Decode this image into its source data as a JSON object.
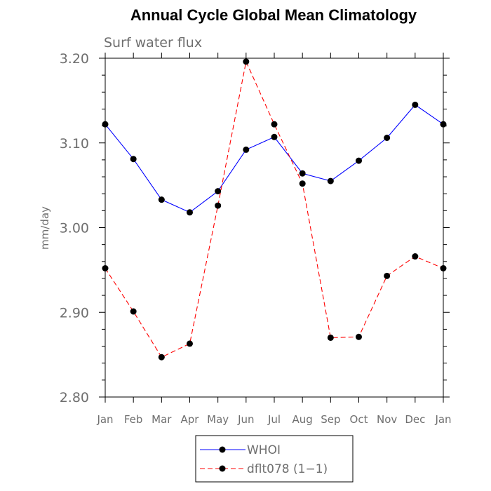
{
  "chart_data": {
    "type": "line",
    "title": "Annual Cycle Global Mean Climatology",
    "subtitle": "Surf water flux",
    "xlabel": "",
    "ylabel": "mm/day",
    "categories": [
      "Jan",
      "Feb",
      "Mar",
      "Apr",
      "May",
      "Jun",
      "Jul",
      "Aug",
      "Sep",
      "Oct",
      "Nov",
      "Dec",
      "Jan"
    ],
    "ylim": [
      2.8,
      3.2
    ],
    "yticks": [
      "2.80",
      "2.90",
      "3.00",
      "3.10",
      "3.20"
    ],
    "ytick_values": [
      2.8,
      2.9,
      3.0,
      3.1,
      3.2
    ],
    "grid": false,
    "legend_position": "bottom-center",
    "series": [
      {
        "name": "WHOI",
        "color": "#0000ff",
        "line_style": "solid",
        "marker": "filled-circle",
        "values": [
          3.122,
          3.081,
          3.033,
          3.018,
          3.043,
          3.092,
          3.107,
          3.064,
          3.055,
          3.079,
          3.106,
          3.145,
          3.122
        ]
      },
      {
        "name": "dflt078 (1−1)",
        "color": "#ff0000",
        "line_style": "dashed",
        "marker": "filled-circle",
        "values": [
          2.952,
          2.901,
          2.847,
          2.863,
          3.026,
          3.196,
          3.122,
          3.052,
          2.87,
          2.871,
          2.943,
          2.966,
          2.952
        ]
      }
    ]
  }
}
